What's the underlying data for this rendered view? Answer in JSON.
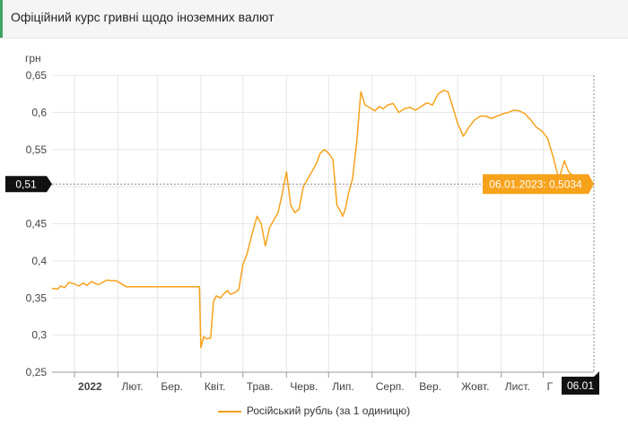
{
  "page": {
    "title": "Офіційний курс гривні щодо іноземних валют"
  },
  "colors": {
    "series": "#f7a21b",
    "tooltip_bg": "#f7a21b",
    "crosshair_label_bg": "#111111",
    "grid": "#e6e6e6",
    "accent": "#3fa463"
  },
  "chart_data": {
    "type": "line",
    "title": "Офіційний курс гривні щодо іноземних валют",
    "ylabel": "грн",
    "xlabel": "",
    "ylim": [
      0.25,
      0.65
    ],
    "y_ticks": [
      0.25,
      0.3,
      0.35,
      0.4,
      0.45,
      0.5,
      0.55,
      0.6,
      0.65
    ],
    "y_tick_labels": [
      "0,25",
      "0,3",
      "0,35",
      "0,4",
      "0,45",
      "0,5",
      "0,55",
      "0,6",
      "0,65"
    ],
    "x_range": [
      "2021-12-16",
      "2023-01-06"
    ],
    "x_ticks": [
      {
        "date": "2022-01-01",
        "label": "2022",
        "bold": true
      },
      {
        "date": "2022-02-01",
        "label": "Лют."
      },
      {
        "date": "2022-03-01",
        "label": "Бер."
      },
      {
        "date": "2022-04-01",
        "label": "Квіт."
      },
      {
        "date": "2022-05-01",
        "label": "Трав."
      },
      {
        "date": "2022-06-01",
        "label": "Черв."
      },
      {
        "date": "2022-07-01",
        "label": "Лип."
      },
      {
        "date": "2022-08-01",
        "label": "Серп."
      },
      {
        "date": "2022-09-01",
        "label": "Вер."
      },
      {
        "date": "2022-10-01",
        "label": "Жовт."
      },
      {
        "date": "2022-11-01",
        "label": "Лист."
      },
      {
        "date": "2022-12-01",
        "label": "Г"
      }
    ],
    "grid": true,
    "legend": "bottom-center",
    "series": [
      {
        "name": "Російський рубль (за 1 одиницю)",
        "x": [
          "2021-12-16",
          "2021-12-20",
          "2021-12-22",
          "2021-12-25",
          "2021-12-28",
          "2022-01-01",
          "2022-01-04",
          "2022-01-07",
          "2022-01-10",
          "2022-01-13",
          "2022-01-18",
          "2022-01-24",
          "2022-01-31",
          "2022-02-07",
          "2022-02-14",
          "2022-02-21",
          "2022-02-24",
          "2022-02-26",
          "2022-03-10",
          "2022-03-31",
          "2022-04-01",
          "2022-04-03",
          "2022-04-05",
          "2022-04-08",
          "2022-04-10",
          "2022-04-12",
          "2022-04-15",
          "2022-04-17",
          "2022-04-20",
          "2022-04-22",
          "2022-04-25",
          "2022-04-28",
          "2022-05-01",
          "2022-05-04",
          "2022-05-08",
          "2022-05-11",
          "2022-05-14",
          "2022-05-17",
          "2022-05-20",
          "2022-05-23",
          "2022-05-26",
          "2022-05-29",
          "2022-06-01",
          "2022-06-04",
          "2022-06-07",
          "2022-06-10",
          "2022-06-13",
          "2022-06-16",
          "2022-06-19",
          "2022-06-22",
          "2022-06-25",
          "2022-06-28",
          "2022-07-01",
          "2022-07-04",
          "2022-07-07",
          "2022-07-10",
          "2022-07-11",
          "2022-07-13",
          "2022-07-15",
          "2022-07-18",
          "2022-07-21",
          "2022-07-24",
          "2022-07-27",
          "2022-07-30",
          "2022-08-03",
          "2022-08-06",
          "2022-08-09",
          "2022-08-12",
          "2022-08-16",
          "2022-08-20",
          "2022-08-24",
          "2022-08-28",
          "2022-09-01",
          "2022-09-05",
          "2022-09-09",
          "2022-09-13",
          "2022-09-17",
          "2022-09-21",
          "2022-09-24",
          "2022-09-27",
          "2022-10-01",
          "2022-10-05",
          "2022-10-09",
          "2022-10-13",
          "2022-10-17",
          "2022-10-21",
          "2022-10-25",
          "2022-10-29",
          "2022-11-02",
          "2022-11-06",
          "2022-11-10",
          "2022-11-14",
          "2022-11-18",
          "2022-11-22",
          "2022-11-26",
          "2022-11-30",
          "2022-12-04",
          "2022-12-08",
          "2022-12-12",
          "2022-12-16",
          "2022-12-19",
          "2022-12-22",
          "2022-12-25",
          "2022-12-28",
          "2022-12-31",
          "2023-01-03",
          "2023-01-06"
        ],
        "values": [
          0.363,
          0.362,
          0.366,
          0.364,
          0.371,
          0.369,
          0.366,
          0.37,
          0.367,
          0.372,
          0.368,
          0.374,
          0.373,
          0.365,
          0.365,
          0.365,
          0.365,
          0.365,
          0.365,
          0.365,
          0.283,
          0.298,
          0.295,
          0.296,
          0.345,
          0.353,
          0.35,
          0.355,
          0.36,
          0.355,
          0.357,
          0.361,
          0.395,
          0.41,
          0.44,
          0.46,
          0.45,
          0.42,
          0.445,
          0.455,
          0.465,
          0.49,
          0.52,
          0.475,
          0.465,
          0.47,
          0.5,
          0.51,
          0.52,
          0.53,
          0.545,
          0.55,
          0.545,
          0.537,
          0.475,
          0.465,
          0.46,
          0.47,
          0.49,
          0.51,
          0.56,
          0.628,
          0.61,
          0.607,
          0.602,
          0.608,
          0.605,
          0.61,
          0.612,
          0.6,
          0.605,
          0.607,
          0.603,
          0.608,
          0.613,
          0.61,
          0.625,
          0.63,
          0.628,
          0.61,
          0.585,
          0.568,
          0.58,
          0.59,
          0.595,
          0.595,
          0.592,
          0.595,
          0.598,
          0.6,
          0.603,
          0.602,
          0.598,
          0.59,
          0.58,
          0.575,
          0.565,
          0.54,
          0.51,
          0.535,
          0.52,
          0.515,
          0.51,
          0.5,
          0.505,
          0.51,
          0.5034
        ]
      }
    ],
    "crosshair": {
      "y_label": "0,51",
      "x_label": "06.01"
    },
    "tooltip": {
      "text": "06.01.2023: 0,5034"
    }
  }
}
